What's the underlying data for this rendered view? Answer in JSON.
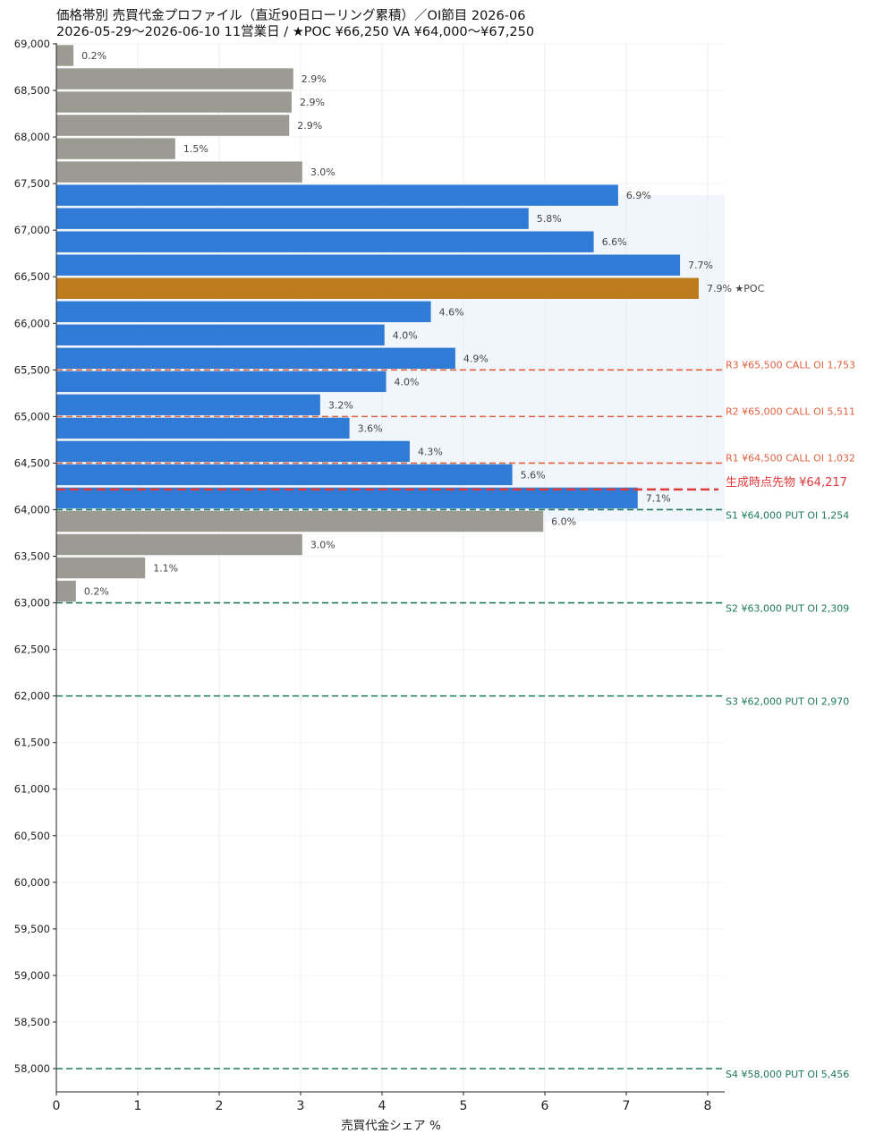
{
  "chart_data": {
    "type": "bar",
    "orientation": "horizontal",
    "title_line1": "価格帯別 売買代金プロファイル（直近90日ローリング累積）／OI節目 2026-06",
    "title_line2": "2026-05-29〜2026-06-10  11営業日  /  ★POC ¥66,250   VA ¥64,000〜¥67,250",
    "xlabel": "売買代金シェア %",
    "xlim": [
      0,
      8.2
    ],
    "xticks": [
      0,
      1,
      2,
      3,
      4,
      5,
      6,
      7,
      8
    ],
    "ylim": [
      57750,
      69000
    ],
    "yticks": [
      "58,000",
      "58,500",
      "59,000",
      "59,500",
      "60,000",
      "60,500",
      "61,000",
      "61,500",
      "62,000",
      "62,500",
      "63,000",
      "63,500",
      "64,000",
      "64,500",
      "65,000",
      "65,500",
      "66,000",
      "66,500",
      "67,000",
      "67,500",
      "68,000",
      "68,500",
      "69,000"
    ],
    "ytick_values": [
      58000,
      58500,
      59000,
      59500,
      60000,
      60500,
      61000,
      61500,
      62000,
      62500,
      63000,
      63500,
      64000,
      64500,
      65000,
      65500,
      66000,
      66500,
      67000,
      67500,
      68000,
      68500,
      69000
    ],
    "bin_width": 250,
    "value_area": {
      "low": 63875,
      "high": 67375,
      "color": "#eef4fa"
    },
    "colors": {
      "outside_va": "#9b9a93",
      "inside_va": "#2f7bd6",
      "poc": "#be7b1c",
      "resistance": "#e0623f",
      "support": "#1e7a5c",
      "spot": "#e03a3a",
      "grid": "#ececec"
    },
    "bars": [
      {
        "price": 68875,
        "value": 0.21,
        "label": "0.2%",
        "zone": "out"
      },
      {
        "price": 68625,
        "value": 2.91,
        "label": "2.9%",
        "zone": "out"
      },
      {
        "price": 68375,
        "value": 2.89,
        "label": "2.9%",
        "zone": "out"
      },
      {
        "price": 68125,
        "value": 2.86,
        "label": "2.9%",
        "zone": "out"
      },
      {
        "price": 67875,
        "value": 1.46,
        "label": "1.5%",
        "zone": "out"
      },
      {
        "price": 67625,
        "value": 3.02,
        "label": "3.0%",
        "zone": "out"
      },
      {
        "price": 67375,
        "value": 6.9,
        "label": "6.9%",
        "zone": "va"
      },
      {
        "price": 67125,
        "value": 5.8,
        "label": "5.8%",
        "zone": "va"
      },
      {
        "price": 66875,
        "value": 6.6,
        "label": "6.6%",
        "zone": "va"
      },
      {
        "price": 66625,
        "value": 7.66,
        "label": "7.7%",
        "zone": "va"
      },
      {
        "price": 66375,
        "value": 7.89,
        "label": "7.9%  ★POC",
        "zone": "poc"
      },
      {
        "price": 66125,
        "value": 4.6,
        "label": "4.6%",
        "zone": "va"
      },
      {
        "price": 65875,
        "value": 4.03,
        "label": "4.0%",
        "zone": "va"
      },
      {
        "price": 65625,
        "value": 4.9,
        "label": "4.9%",
        "zone": "va"
      },
      {
        "price": 65375,
        "value": 4.05,
        "label": "4.0%",
        "zone": "va"
      },
      {
        "price": 65125,
        "value": 3.24,
        "label": "3.2%",
        "zone": "va"
      },
      {
        "price": 64875,
        "value": 3.6,
        "label": "3.6%",
        "zone": "va"
      },
      {
        "price": 64625,
        "value": 4.34,
        "label": "4.3%",
        "zone": "va"
      },
      {
        "price": 64375,
        "value": 5.6,
        "label": "5.6%",
        "zone": "va"
      },
      {
        "price": 64125,
        "value": 7.14,
        "label": "7.1%",
        "zone": "va"
      },
      {
        "price": 63875,
        "value": 5.98,
        "label": "6.0%",
        "zone": "out"
      },
      {
        "price": 63625,
        "value": 3.02,
        "label": "3.0%",
        "zone": "out"
      },
      {
        "price": 63375,
        "value": 1.09,
        "label": "1.1%",
        "zone": "out"
      },
      {
        "price": 63125,
        "value": 0.24,
        "label": "0.2%",
        "zone": "out"
      }
    ],
    "levels": [
      {
        "price": 65500,
        "label": "R3 ¥65,500  CALL OI 1,753",
        "kind": "resistance"
      },
      {
        "price": 65000,
        "label": "R2 ¥65,000  CALL OI 5,511",
        "kind": "resistance"
      },
      {
        "price": 64500,
        "label": "R1 ¥64,500  CALL OI 1,032",
        "kind": "resistance"
      },
      {
        "price": 64000,
        "label": "S1 ¥64,000  PUT OI 1,254",
        "kind": "support"
      },
      {
        "price": 63000,
        "label": "S2 ¥63,000  PUT OI 2,309",
        "kind": "support"
      },
      {
        "price": 62000,
        "label": "S3 ¥62,000  PUT OI 2,970",
        "kind": "support"
      },
      {
        "price": 58000,
        "label": "S4 ¥58,000  PUT OI 5,456",
        "kind": "support"
      }
    ],
    "spot": {
      "price": 64217,
      "label": "生成時点先物 ¥64,217"
    }
  }
}
